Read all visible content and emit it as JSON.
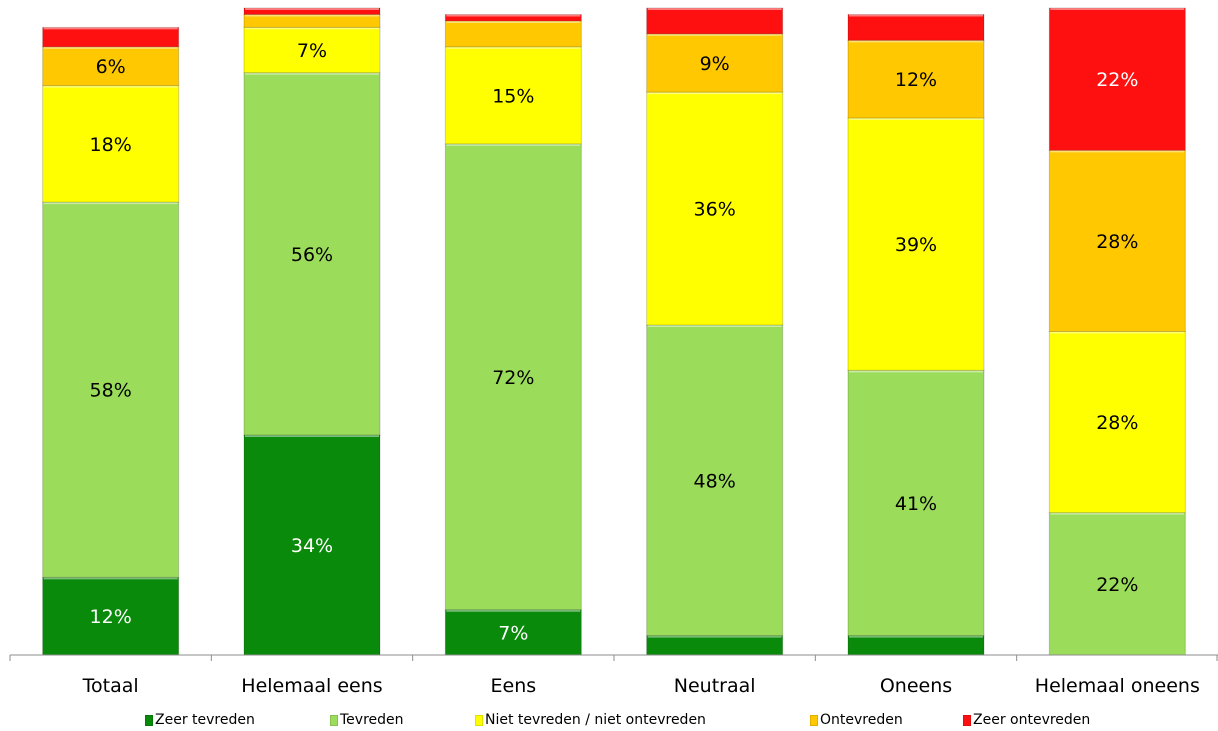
{
  "chart_data": {
    "type": "bar",
    "stacked": true,
    "title": "",
    "xlabel": "",
    "ylabel": "",
    "ylim": [
      0,
      100
    ],
    "grid": false,
    "legend_position": "bottom",
    "categories": [
      "Totaal",
      "Helemaal eens",
      "Eens",
      "Neutraal",
      "Oneens",
      "Helemaal oneens"
    ],
    "series": [
      {
        "name": "Zeer tevreden",
        "color": "#0a8a0a",
        "label_color": "#ffffff",
        "values": [
          12,
          34,
          7,
          3,
          3,
          0
        ],
        "labels": [
          "12%",
          "34%",
          "7%",
          "",
          "",
          ""
        ]
      },
      {
        "name": "Tevreden",
        "color": "#9bdc5a",
        "label_color": "#000000",
        "values": [
          58,
          56,
          72,
          48,
          41,
          22
        ],
        "labels": [
          "58%",
          "56%",
          "72%",
          "48%",
          "41%",
          "22%"
        ]
      },
      {
        "name": "Niet tevreden / niet ontevreden",
        "color": "#ffff00",
        "label_color": "#000000",
        "values": [
          18,
          7,
          15,
          36,
          39,
          28
        ],
        "labels": [
          "18%",
          "7%",
          "15%",
          "36%",
          "39%",
          "28%"
        ]
      },
      {
        "name": "Ontevreden",
        "color": "#ffc800",
        "label_color": "#000000",
        "values": [
          6,
          2,
          4,
          9,
          12,
          28
        ],
        "labels": [
          "6%",
          "",
          "",
          "9%",
          "12%",
          "28%"
        ]
      },
      {
        "name": "Zeer ontevreden",
        "color": "#ff1010",
        "label_color": "#ffffff",
        "values": [
          3,
          1,
          1,
          4,
          4,
          22
        ],
        "labels": [
          "",
          "",
          "",
          "",
          "",
          "22%"
        ]
      }
    ]
  }
}
